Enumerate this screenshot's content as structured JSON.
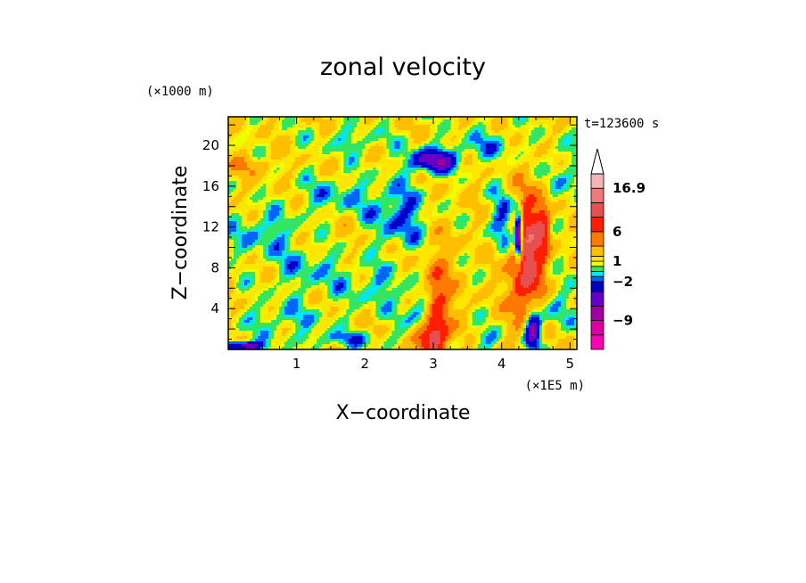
{
  "chart_data": {
    "type": "heatmap",
    "title": "zonal velocity",
    "xlabel": "X−coordinate",
    "ylabel": "Z−coordinate",
    "x_unit": "(×1E5 m)",
    "y_unit": "(×1000 m)",
    "time_label": "t=123600 s",
    "xlim": [
      0,
      5.1
    ],
    "ylim": [
      0,
      22.8
    ],
    "x_ticks": [
      1,
      2,
      3,
      4,
      5
    ],
    "y_ticks": [
      4,
      8,
      12,
      16,
      20
    ],
    "colorbar": {
      "levels": [
        -16,
        -12,
        -9,
        -6,
        -4,
        -2,
        -1,
        -0.5,
        0.5,
        1,
        2,
        4,
        6,
        9,
        12,
        16.9
      ],
      "colors": [
        "#ff00b4",
        "#dc00a0",
        "#a000a0",
        "#6400c8",
        "#0000c8",
        "#0064ff",
        "#00e6ff",
        "#32e664",
        "#f0ff00",
        "#ffe600",
        "#ffbe00",
        "#ff7800",
        "#ff1e00",
        "#e65050",
        "#f07878",
        "#f5b4b4"
      ],
      "tick_labels": [
        {
          "value": 16.9,
          "text": "16.9"
        },
        {
          "value": 6,
          "text": "6"
        },
        {
          "value": 1,
          "text": "1"
        },
        {
          "value": -2,
          "text": "−2"
        },
        {
          "value": -9,
          "text": "−9"
        }
      ]
    },
    "background_value": 1.5,
    "features": [
      {
        "x": 3.05,
        "z": 3.0,
        "sx": 0.18,
        "sz": 5.0,
        "amp": 8
      },
      {
        "x": 2.9,
        "z": 1.2,
        "sx": 0.22,
        "sz": 1.2,
        "amp": 5
      },
      {
        "x": 3.45,
        "z": 10.0,
        "sx": 0.55,
        "sz": 7.0,
        "amp": 0.5
      },
      {
        "x": 4.35,
        "z": 9.0,
        "sx": 0.22,
        "sz": 6.0,
        "amp": 10
      },
      {
        "x": 4.6,
        "z": 12.0,
        "sx": 0.12,
        "sz": 3.0,
        "amp": 6
      },
      {
        "x": 4.25,
        "z": 11.0,
        "sx": 0.06,
        "sz": 2.5,
        "amp": -14
      },
      {
        "x": 4.45,
        "z": 2.0,
        "sx": 0.12,
        "sz": 2.0,
        "amp": -9
      },
      {
        "x": 3.0,
        "z": 18.5,
        "sx": 0.35,
        "sz": 1.2,
        "amp": -7
      },
      {
        "x": 2.85,
        "z": 3.5,
        "sx": 0.25,
        "sz": 1.8,
        "amp": -4
      },
      {
        "x": 2.5,
        "z": 13.0,
        "sx": 0.4,
        "sz": 3.0,
        "amp": -3.5
      },
      {
        "x": 4.05,
        "z": 12.5,
        "sx": 0.25,
        "sz": 3.0,
        "amp": -4
      },
      {
        "x": 1.2,
        "z": 8.0,
        "sx": 0.6,
        "sz": 2.5,
        "amp": -2.2
      },
      {
        "x": 0.5,
        "z": 11.5,
        "sx": 0.5,
        "sz": 2.0,
        "amp": -2.5
      },
      {
        "x": 1.6,
        "z": 15.0,
        "sx": 0.6,
        "sz": 2.0,
        "amp": -2.2
      },
      {
        "x": 2.2,
        "z": 6.0,
        "sx": 0.5,
        "sz": 2.0,
        "amp": -2.0
      },
      {
        "x": 0.8,
        "z": 3.0,
        "sx": 0.6,
        "sz": 1.5,
        "amp": -2.0
      },
      {
        "x": 1.7,
        "z": 1.0,
        "sx": 0.7,
        "sz": 0.8,
        "amp": -2.5
      },
      {
        "x": 0.2,
        "z": 0.3,
        "sx": 0.3,
        "sz": 0.5,
        "amp": -8
      },
      {
        "x": 3.75,
        "z": 1.0,
        "sx": 0.25,
        "sz": 1.0,
        "amp": -2.2
      },
      {
        "x": 3.8,
        "z": 20.0,
        "sx": 0.5,
        "sz": 1.5,
        "amp": -2.2
      },
      {
        "x": 1.8,
        "z": 20.5,
        "sx": 0.5,
        "sz": 1.2,
        "amp": -2.0
      },
      {
        "x": 0.3,
        "z": 18.0,
        "sx": 0.3,
        "sz": 1.0,
        "amp": 2.5
      },
      {
        "x": 1.5,
        "z": 11.0,
        "sx": 0.5,
        "sz": 2.5,
        "amp": 0.7
      },
      {
        "x": 4.9,
        "z": 17.0,
        "sx": 0.25,
        "sz": 3.0,
        "amp": -2.2
      },
      {
        "x": 4.8,
        "z": 4.0,
        "sx": 0.2,
        "sz": 2.0,
        "amp": -2.5
      }
    ]
  }
}
